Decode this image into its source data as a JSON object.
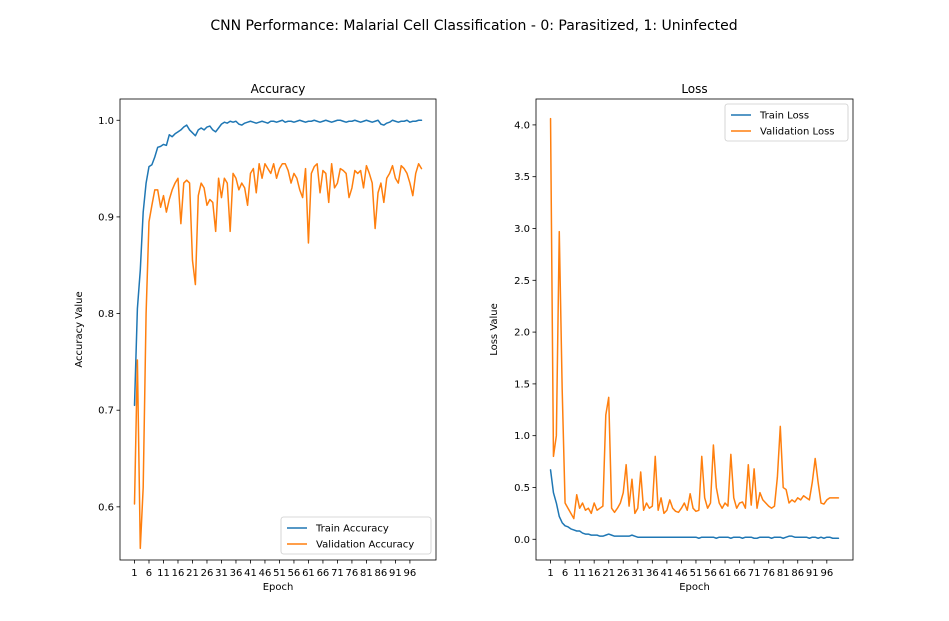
{
  "figure": {
    "suptitle": "CNN Performance: Malarial Cell Classification - 0: Parasitized, 1: Uninfected"
  },
  "chart_data": [
    {
      "type": "line",
      "title": "Accuracy",
      "xlabel": "Epoch",
      "ylabel": "Accuracy Value",
      "xlim": [
        -4,
        105
      ],
      "ylim": [
        0.545,
        1.022
      ],
      "x_ticks": [
        1,
        6,
        11,
        16,
        21,
        26,
        31,
        36,
        41,
        46,
        51,
        56,
        61,
        66,
        71,
        76,
        81,
        86,
        91,
        96
      ],
      "y_ticks": [
        0.6,
        0.7,
        0.8,
        0.9,
        1.0
      ],
      "y_tick_labels": [
        "0.6",
        "0.7",
        "0.8",
        "0.9",
        "1.0"
      ],
      "grid": false,
      "legend_position": "lower-right",
      "x": [
        1,
        2,
        3,
        4,
        5,
        6,
        7,
        8,
        9,
        10,
        11,
        12,
        13,
        14,
        15,
        16,
        17,
        18,
        19,
        20,
        21,
        22,
        23,
        24,
        25,
        26,
        27,
        28,
        29,
        30,
        31,
        32,
        33,
        34,
        35,
        36,
        37,
        38,
        39,
        40,
        41,
        42,
        43,
        44,
        45,
        46,
        47,
        48,
        49,
        50,
        51,
        52,
        53,
        54,
        55,
        56,
        57,
        58,
        59,
        60,
        61,
        62,
        63,
        64,
        65,
        66,
        67,
        68,
        69,
        70,
        71,
        72,
        73,
        74,
        75,
        76,
        77,
        78,
        79,
        80,
        81,
        82,
        83,
        84,
        85,
        86,
        87,
        88,
        89,
        90,
        91,
        92,
        93,
        94,
        95,
        96,
        97,
        98,
        99,
        100
      ],
      "series": [
        {
          "name": "Train Accuracy",
          "color": "#1f77b4",
          "values": [
            0.705,
            0.805,
            0.845,
            0.905,
            0.935,
            0.952,
            0.954,
            0.962,
            0.972,
            0.973,
            0.975,
            0.974,
            0.985,
            0.983,
            0.986,
            0.988,
            0.99,
            0.993,
            0.995,
            0.99,
            0.987,
            0.984,
            0.99,
            0.992,
            0.99,
            0.993,
            0.994,
            0.99,
            0.988,
            0.992,
            0.996,
            0.998,
            0.997,
            0.999,
            0.998,
            0.999,
            0.996,
            0.995,
            0.997,
            0.998,
            0.999,
            0.998,
            0.997,
            0.998,
            0.999,
            0.998,
            0.997,
            0.999,
            0.999,
            0.998,
            0.999,
            1.0,
            0.998,
            0.999,
            0.999,
            0.998,
            0.999,
            1.0,
            0.999,
            0.998,
            0.999,
            0.999,
            1.0,
            0.999,
            0.998,
            0.999,
            1.0,
            0.999,
            0.998,
            0.999,
            1.0,
            1.0,
            0.999,
            0.998,
            0.999,
            0.999,
            1.0,
            0.999,
            0.998,
            0.999,
            1.0,
            0.999,
            0.998,
            0.999,
            1.0,
            0.996,
            0.995,
            0.997,
            0.998,
            1.0,
            0.999,
            0.998,
            0.999,
            0.999,
            1.0,
            0.998,
            0.999,
            0.999,
            1.0,
            1.0
          ]
        },
        {
          "name": "Validation Accuracy",
          "color": "#ff7f0e",
          "values": [
            0.603,
            0.752,
            0.557,
            0.62,
            0.8,
            0.895,
            0.912,
            0.928,
            0.928,
            0.91,
            0.922,
            0.905,
            0.918,
            0.928,
            0.935,
            0.94,
            0.893,
            0.935,
            0.938,
            0.935,
            0.855,
            0.83,
            0.922,
            0.935,
            0.93,
            0.912,
            0.918,
            0.915,
            0.885,
            0.94,
            0.92,
            0.94,
            0.935,
            0.885,
            0.945,
            0.94,
            0.928,
            0.935,
            0.93,
            0.912,
            0.945,
            0.95,
            0.925,
            0.955,
            0.94,
            0.955,
            0.95,
            0.945,
            0.955,
            0.94,
            0.95,
            0.955,
            0.955,
            0.948,
            0.935,
            0.945,
            0.94,
            0.928,
            0.92,
            0.95,
            0.873,
            0.945,
            0.952,
            0.955,
            0.925,
            0.948,
            0.945,
            0.915,
            0.955,
            0.93,
            0.935,
            0.95,
            0.948,
            0.945,
            0.92,
            0.93,
            0.948,
            0.945,
            0.948,
            0.93,
            0.953,
            0.945,
            0.935,
            0.888,
            0.925,
            0.935,
            0.915,
            0.94,
            0.945,
            0.953,
            0.94,
            0.935,
            0.953,
            0.95,
            0.945,
            0.935,
            0.922,
            0.945,
            0.955,
            0.95
          ]
        }
      ]
    },
    {
      "type": "line",
      "title": "Loss",
      "xlabel": "Epoch",
      "ylabel": "Loss Value",
      "xlim": [
        -4,
        105
      ],
      "ylim": [
        -0.2,
        4.25
      ],
      "x_ticks": [
        1,
        6,
        11,
        16,
        21,
        26,
        31,
        36,
        41,
        46,
        51,
        56,
        61,
        66,
        71,
        76,
        81,
        86,
        91,
        96
      ],
      "y_ticks": [
        0.0,
        0.5,
        1.0,
        1.5,
        2.0,
        2.5,
        3.0,
        3.5,
        4.0
      ],
      "y_tick_labels": [
        "0.0",
        "0.5",
        "1.0",
        "1.5",
        "2.0",
        "2.5",
        "3.0",
        "3.5",
        "4.0"
      ],
      "grid": false,
      "legend_position": "upper-right",
      "x": [
        1,
        2,
        3,
        4,
        5,
        6,
        7,
        8,
        9,
        10,
        11,
        12,
        13,
        14,
        15,
        16,
        17,
        18,
        19,
        20,
        21,
        22,
        23,
        24,
        25,
        26,
        27,
        28,
        29,
        30,
        31,
        32,
        33,
        34,
        35,
        36,
        37,
        38,
        39,
        40,
        41,
        42,
        43,
        44,
        45,
        46,
        47,
        48,
        49,
        50,
        51,
        52,
        53,
        54,
        55,
        56,
        57,
        58,
        59,
        60,
        61,
        62,
        63,
        64,
        65,
        66,
        67,
        68,
        69,
        70,
        71,
        72,
        73,
        74,
        75,
        76,
        77,
        78,
        79,
        80,
        81,
        82,
        83,
        84,
        85,
        86,
        87,
        88,
        89,
        90,
        91,
        92,
        93,
        94,
        95,
        96,
        97,
        98,
        99,
        100
      ],
      "series": [
        {
          "name": "Train Loss",
          "color": "#1f77b4",
          "values": [
            0.67,
            0.45,
            0.35,
            0.22,
            0.16,
            0.13,
            0.12,
            0.1,
            0.09,
            0.08,
            0.08,
            0.06,
            0.05,
            0.05,
            0.04,
            0.04,
            0.04,
            0.03,
            0.03,
            0.04,
            0.05,
            0.04,
            0.03,
            0.03,
            0.03,
            0.03,
            0.03,
            0.03,
            0.04,
            0.03,
            0.02,
            0.02,
            0.02,
            0.02,
            0.02,
            0.02,
            0.02,
            0.02,
            0.02,
            0.02,
            0.02,
            0.02,
            0.02,
            0.02,
            0.02,
            0.02,
            0.02,
            0.02,
            0.02,
            0.02,
            0.02,
            0.01,
            0.02,
            0.02,
            0.02,
            0.02,
            0.02,
            0.01,
            0.02,
            0.02,
            0.02,
            0.02,
            0.01,
            0.02,
            0.02,
            0.02,
            0.01,
            0.02,
            0.02,
            0.02,
            0.01,
            0.01,
            0.02,
            0.02,
            0.02,
            0.02,
            0.01,
            0.02,
            0.02,
            0.02,
            0.01,
            0.02,
            0.03,
            0.03,
            0.02,
            0.02,
            0.02,
            0.02,
            0.02,
            0.01,
            0.02,
            0.02,
            0.01,
            0.02,
            0.01,
            0.02,
            0.02,
            0.01,
            0.01,
            0.01
          ]
        },
        {
          "name": "Validation Loss",
          "color": "#ff7f0e",
          "values": [
            4.06,
            0.8,
            1.0,
            2.97,
            1.45,
            0.35,
            0.3,
            0.25,
            0.2,
            0.43,
            0.3,
            0.35,
            0.28,
            0.3,
            0.25,
            0.35,
            0.28,
            0.3,
            0.32,
            1.2,
            1.37,
            0.3,
            0.26,
            0.3,
            0.35,
            0.45,
            0.72,
            0.32,
            0.58,
            0.25,
            0.3,
            0.65,
            0.28,
            0.35,
            0.3,
            0.32,
            0.8,
            0.28,
            0.4,
            0.25,
            0.28,
            0.38,
            0.3,
            0.27,
            0.26,
            0.3,
            0.35,
            0.28,
            0.44,
            0.3,
            0.27,
            0.28,
            0.8,
            0.4,
            0.3,
            0.35,
            0.91,
            0.5,
            0.35,
            0.3,
            0.35,
            0.32,
            0.82,
            0.4,
            0.3,
            0.35,
            0.36,
            0.3,
            0.72,
            0.33,
            0.68,
            0.3,
            0.45,
            0.38,
            0.35,
            0.32,
            0.3,
            0.32,
            0.6,
            1.09,
            0.5,
            0.48,
            0.35,
            0.38,
            0.36,
            0.4,
            0.38,
            0.42,
            0.4,
            0.38,
            0.55,
            0.78,
            0.55,
            0.35,
            0.34,
            0.38,
            0.4,
            0.4,
            0.4,
            0.4
          ]
        }
      ]
    }
  ]
}
